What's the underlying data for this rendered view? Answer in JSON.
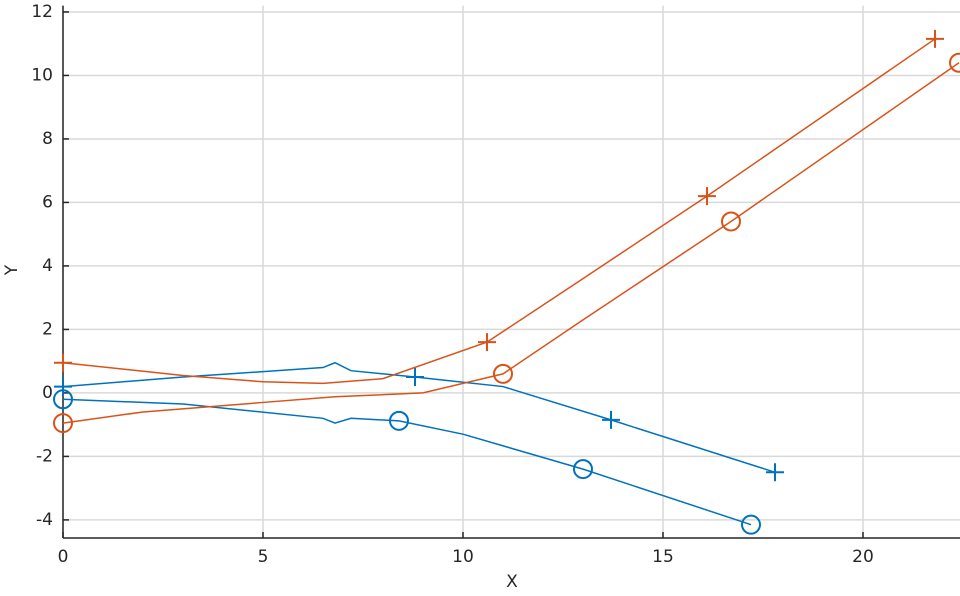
{
  "chart_data": {
    "type": "line",
    "xlabel": "X",
    "ylabel": "Y",
    "xlim": [
      0,
      22.425
    ],
    "ylim": [
      -4.57,
      12.2
    ],
    "xticks": [
      0,
      5,
      10,
      15,
      20
    ],
    "yticks": [
      -4,
      -2,
      0,
      2,
      4,
      6,
      8,
      10,
      12
    ],
    "grid": true,
    "series": [
      {
        "color": "#0072bd",
        "marker": null,
        "x": [
          0,
          3,
          6.5,
          6.8,
          7.2,
          8.8,
          11,
          13.7,
          17.8
        ],
        "values": [
          0.2,
          0.5,
          0.8,
          0.95,
          0.7,
          0.5,
          0.2,
          -0.85,
          -2.5
        ]
      },
      {
        "color": "#0072bd",
        "marker": "+",
        "x": [
          0,
          8.8,
          13.7,
          17.8
        ],
        "values": [
          0.2,
          0.5,
          -0.85,
          -2.5
        ]
      },
      {
        "color": "#0072bd",
        "marker": null,
        "x": [
          0,
          3,
          6.5,
          6.8,
          7.2,
          8.4,
          10,
          13,
          17.2
        ],
        "values": [
          -0.2,
          -0.35,
          -0.8,
          -0.95,
          -0.8,
          -0.88,
          -1.3,
          -2.4,
          -4.15
        ]
      },
      {
        "color": "#0072bd",
        "marker": "o",
        "x": [
          0,
          8.4,
          13,
          17.2
        ],
        "values": [
          -0.2,
          -0.88,
          -2.4,
          -4.15
        ]
      },
      {
        "color": "#d95319",
        "marker": null,
        "x": [
          0,
          3,
          5,
          6.5,
          8,
          10.6,
          13,
          16.1,
          21.8
        ],
        "values": [
          0.95,
          0.55,
          0.35,
          0.3,
          0.45,
          1.6,
          3.6,
          6.2,
          11.15
        ]
      },
      {
        "color": "#d95319",
        "marker": "+",
        "x": [
          0,
          10.6,
          16.1,
          21.8
        ],
        "values": [
          0.95,
          1.6,
          6.2,
          11.15
        ]
      },
      {
        "color": "#d95319",
        "marker": null,
        "x": [
          0,
          2,
          5,
          6.8,
          9,
          11,
          13,
          16.7,
          22.4
        ],
        "values": [
          -0.95,
          -0.6,
          -0.3,
          -0.12,
          0,
          0.6,
          2.3,
          5.4,
          10.4
        ]
      },
      {
        "color": "#d95319",
        "marker": "o",
        "x": [
          0,
          11,
          16.7,
          22.4
        ],
        "values": [
          -0.95,
          0.6,
          5.4,
          10.4
        ]
      }
    ]
  }
}
